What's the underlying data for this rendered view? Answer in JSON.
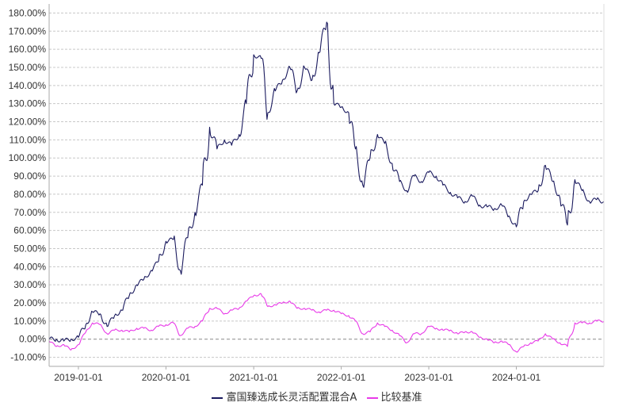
{
  "chart_data": {
    "type": "line",
    "x_ticks": [
      "2019-01-01",
      "2020-01-01",
      "2021-01-01",
      "2022-01-01",
      "2023-01-01",
      "2024-01-01"
    ],
    "y_ticks": [
      "-10.00%",
      "0.00%",
      "10.00%",
      "20.00%",
      "30.00%",
      "40.00%",
      "50.00%",
      "60.00%",
      "70.00%",
      "80.00%",
      "90.00%",
      "100.00%",
      "110.00%",
      "120.00%",
      "130.00%",
      "140.00%",
      "150.00%",
      "160.00%",
      "170.00%",
      "180.00%"
    ],
    "ylim": [
      -15,
      185
    ],
    "xlim": [
      "2018-09-01",
      "2024-12-31"
    ],
    "grid": true,
    "legend_position": "bottom",
    "series": [
      {
        "name": "富国臻选成长灵活配置混合A",
        "color": "#1a1a5e",
        "points": [
          [
            "2018-09-01",
            0
          ],
          [
            "2018-10-01",
            0
          ],
          [
            "2018-11-01",
            -1
          ],
          [
            "2018-12-01",
            0
          ],
          [
            "2019-01-01",
            1
          ],
          [
            "2019-02-01",
            8
          ],
          [
            "2019-03-01",
            15
          ],
          [
            "2019-04-01",
            14
          ],
          [
            "2019-05-01",
            7
          ],
          [
            "2019-06-01",
            13
          ],
          [
            "2019-07-01",
            16
          ],
          [
            "2019-08-01",
            24
          ],
          [
            "2019-09-01",
            30
          ],
          [
            "2019-10-01",
            33
          ],
          [
            "2019-11-01",
            38
          ],
          [
            "2019-12-01",
            43
          ],
          [
            "2020-01-01",
            54
          ],
          [
            "2020-02-01",
            55
          ],
          [
            "2020-03-01",
            38
          ],
          [
            "2020-04-01",
            56
          ],
          [
            "2020-05-01",
            70
          ],
          [
            "2020-06-01",
            85
          ],
          [
            "2020-07-01",
            117
          ],
          [
            "2020-08-01",
            105
          ],
          [
            "2020-09-01",
            110
          ],
          [
            "2020-10-01",
            107
          ],
          [
            "2020-11-01",
            113
          ],
          [
            "2020-12-01",
            130
          ],
          [
            "2021-01-01",
            157
          ],
          [
            "2021-02-01",
            155
          ],
          [
            "2021-03-01",
            125
          ],
          [
            "2021-04-01",
            137
          ],
          [
            "2021-05-01",
            143
          ],
          [
            "2021-06-01",
            150
          ],
          [
            "2021-07-01",
            137
          ],
          [
            "2021-08-01",
            150
          ],
          [
            "2021-09-01",
            143
          ],
          [
            "2021-10-01",
            158
          ],
          [
            "2021-11-01",
            175
          ],
          [
            "2021-12-01",
            130
          ],
          [
            "2022-01-01",
            128
          ],
          [
            "2022-02-01",
            125
          ],
          [
            "2022-03-01",
            105
          ],
          [
            "2022-04-01",
            85
          ],
          [
            "2022-05-01",
            100
          ],
          [
            "2022-06-01",
            113
          ],
          [
            "2022-07-01",
            108
          ],
          [
            "2022-08-01",
            97
          ],
          [
            "2022-09-01",
            87
          ],
          [
            "2022-10-01",
            82
          ],
          [
            "2022-11-01",
            90
          ],
          [
            "2022-12-01",
            87
          ],
          [
            "2023-01-01",
            92
          ],
          [
            "2023-02-01",
            90
          ],
          [
            "2023-03-01",
            85
          ],
          [
            "2023-04-01",
            81
          ],
          [
            "2023-05-01",
            78
          ],
          [
            "2023-06-01",
            76
          ],
          [
            "2023-07-01",
            79
          ],
          [
            "2023-08-01",
            74
          ],
          [
            "2023-09-01",
            73
          ],
          [
            "2023-10-01",
            72
          ],
          [
            "2023-11-01",
            74
          ],
          [
            "2023-12-01",
            68
          ],
          [
            "2024-01-01",
            62
          ],
          [
            "2024-02-01",
            76
          ],
          [
            "2024-03-01",
            80
          ],
          [
            "2024-04-01",
            82
          ],
          [
            "2024-05-01",
            96
          ],
          [
            "2024-06-01",
            87
          ],
          [
            "2024-07-01",
            78
          ],
          [
            "2024-08-01",
            63
          ],
          [
            "2024-09-01",
            88
          ],
          [
            "2024-10-01",
            82
          ],
          [
            "2024-11-01",
            76
          ],
          [
            "2024-12-01",
            77
          ],
          [
            "2024-12-31",
            76
          ]
        ]
      },
      {
        "name": "比较基准",
        "color": "#e83ae8",
        "points": [
          [
            "2018-09-01",
            -1
          ],
          [
            "2018-10-01",
            -4
          ],
          [
            "2018-11-01",
            -3
          ],
          [
            "2018-12-01",
            -6
          ],
          [
            "2019-01-01",
            -3
          ],
          [
            "2019-02-01",
            4
          ],
          [
            "2019-03-01",
            9
          ],
          [
            "2019-04-01",
            8
          ],
          [
            "2019-05-01",
            3
          ],
          [
            "2019-06-01",
            5
          ],
          [
            "2019-07-01",
            5
          ],
          [
            "2019-08-01",
            4
          ],
          [
            "2019-09-01",
            6
          ],
          [
            "2019-10-01",
            6
          ],
          [
            "2019-11-01",
            5
          ],
          [
            "2019-12-01",
            7
          ],
          [
            "2020-01-01",
            8
          ],
          [
            "2020-02-01",
            9
          ],
          [
            "2020-03-01",
            2
          ],
          [
            "2020-04-01",
            6
          ],
          [
            "2020-05-01",
            7
          ],
          [
            "2020-06-01",
            10
          ],
          [
            "2020-07-01",
            17
          ],
          [
            "2020-08-01",
            17
          ],
          [
            "2020-09-01",
            14
          ],
          [
            "2020-10-01",
            16
          ],
          [
            "2020-11-01",
            17
          ],
          [
            "2020-12-01",
            21
          ],
          [
            "2021-01-01",
            24
          ],
          [
            "2021-02-01",
            25
          ],
          [
            "2021-03-01",
            18
          ],
          [
            "2021-04-01",
            19
          ],
          [
            "2021-05-01",
            20
          ],
          [
            "2021-06-01",
            21
          ],
          [
            "2021-07-01",
            17
          ],
          [
            "2021-08-01",
            17
          ],
          [
            "2021-09-01",
            16
          ],
          [
            "2021-10-01",
            15
          ],
          [
            "2021-11-01",
            16
          ],
          [
            "2021-12-01",
            16
          ],
          [
            "2022-01-01",
            14
          ],
          [
            "2022-02-01",
            13
          ],
          [
            "2022-03-01",
            10
          ],
          [
            "2022-04-01",
            3
          ],
          [
            "2022-05-01",
            4
          ],
          [
            "2022-06-01",
            9
          ],
          [
            "2022-07-01",
            7
          ],
          [
            "2022-08-01",
            5
          ],
          [
            "2022-09-01",
            2
          ],
          [
            "2022-10-01",
            -2
          ],
          [
            "2022-11-01",
            3
          ],
          [
            "2022-12-01",
            3
          ],
          [
            "2023-01-01",
            7
          ],
          [
            "2023-02-01",
            6
          ],
          [
            "2023-03-01",
            5
          ],
          [
            "2023-04-01",
            5
          ],
          [
            "2023-05-01",
            3
          ],
          [
            "2023-06-01",
            4
          ],
          [
            "2023-07-01",
            4
          ],
          [
            "2023-08-01",
            1
          ],
          [
            "2023-09-01",
            0
          ],
          [
            "2023-10-01",
            -2
          ],
          [
            "2023-11-01",
            -1
          ],
          [
            "2023-12-01",
            -3
          ],
          [
            "2024-01-01",
            -7
          ],
          [
            "2024-02-01",
            -4
          ],
          [
            "2024-03-01",
            -2
          ],
          [
            "2024-04-01",
            -1
          ],
          [
            "2024-05-01",
            3
          ],
          [
            "2024-06-01",
            0
          ],
          [
            "2024-07-01",
            -2
          ],
          [
            "2024-08-01",
            -4
          ],
          [
            "2024-09-01",
            9
          ],
          [
            "2024-10-01",
            9
          ],
          [
            "2024-11-01",
            9
          ],
          [
            "2024-12-01",
            10
          ],
          [
            "2024-12-31",
            10
          ]
        ]
      }
    ]
  }
}
